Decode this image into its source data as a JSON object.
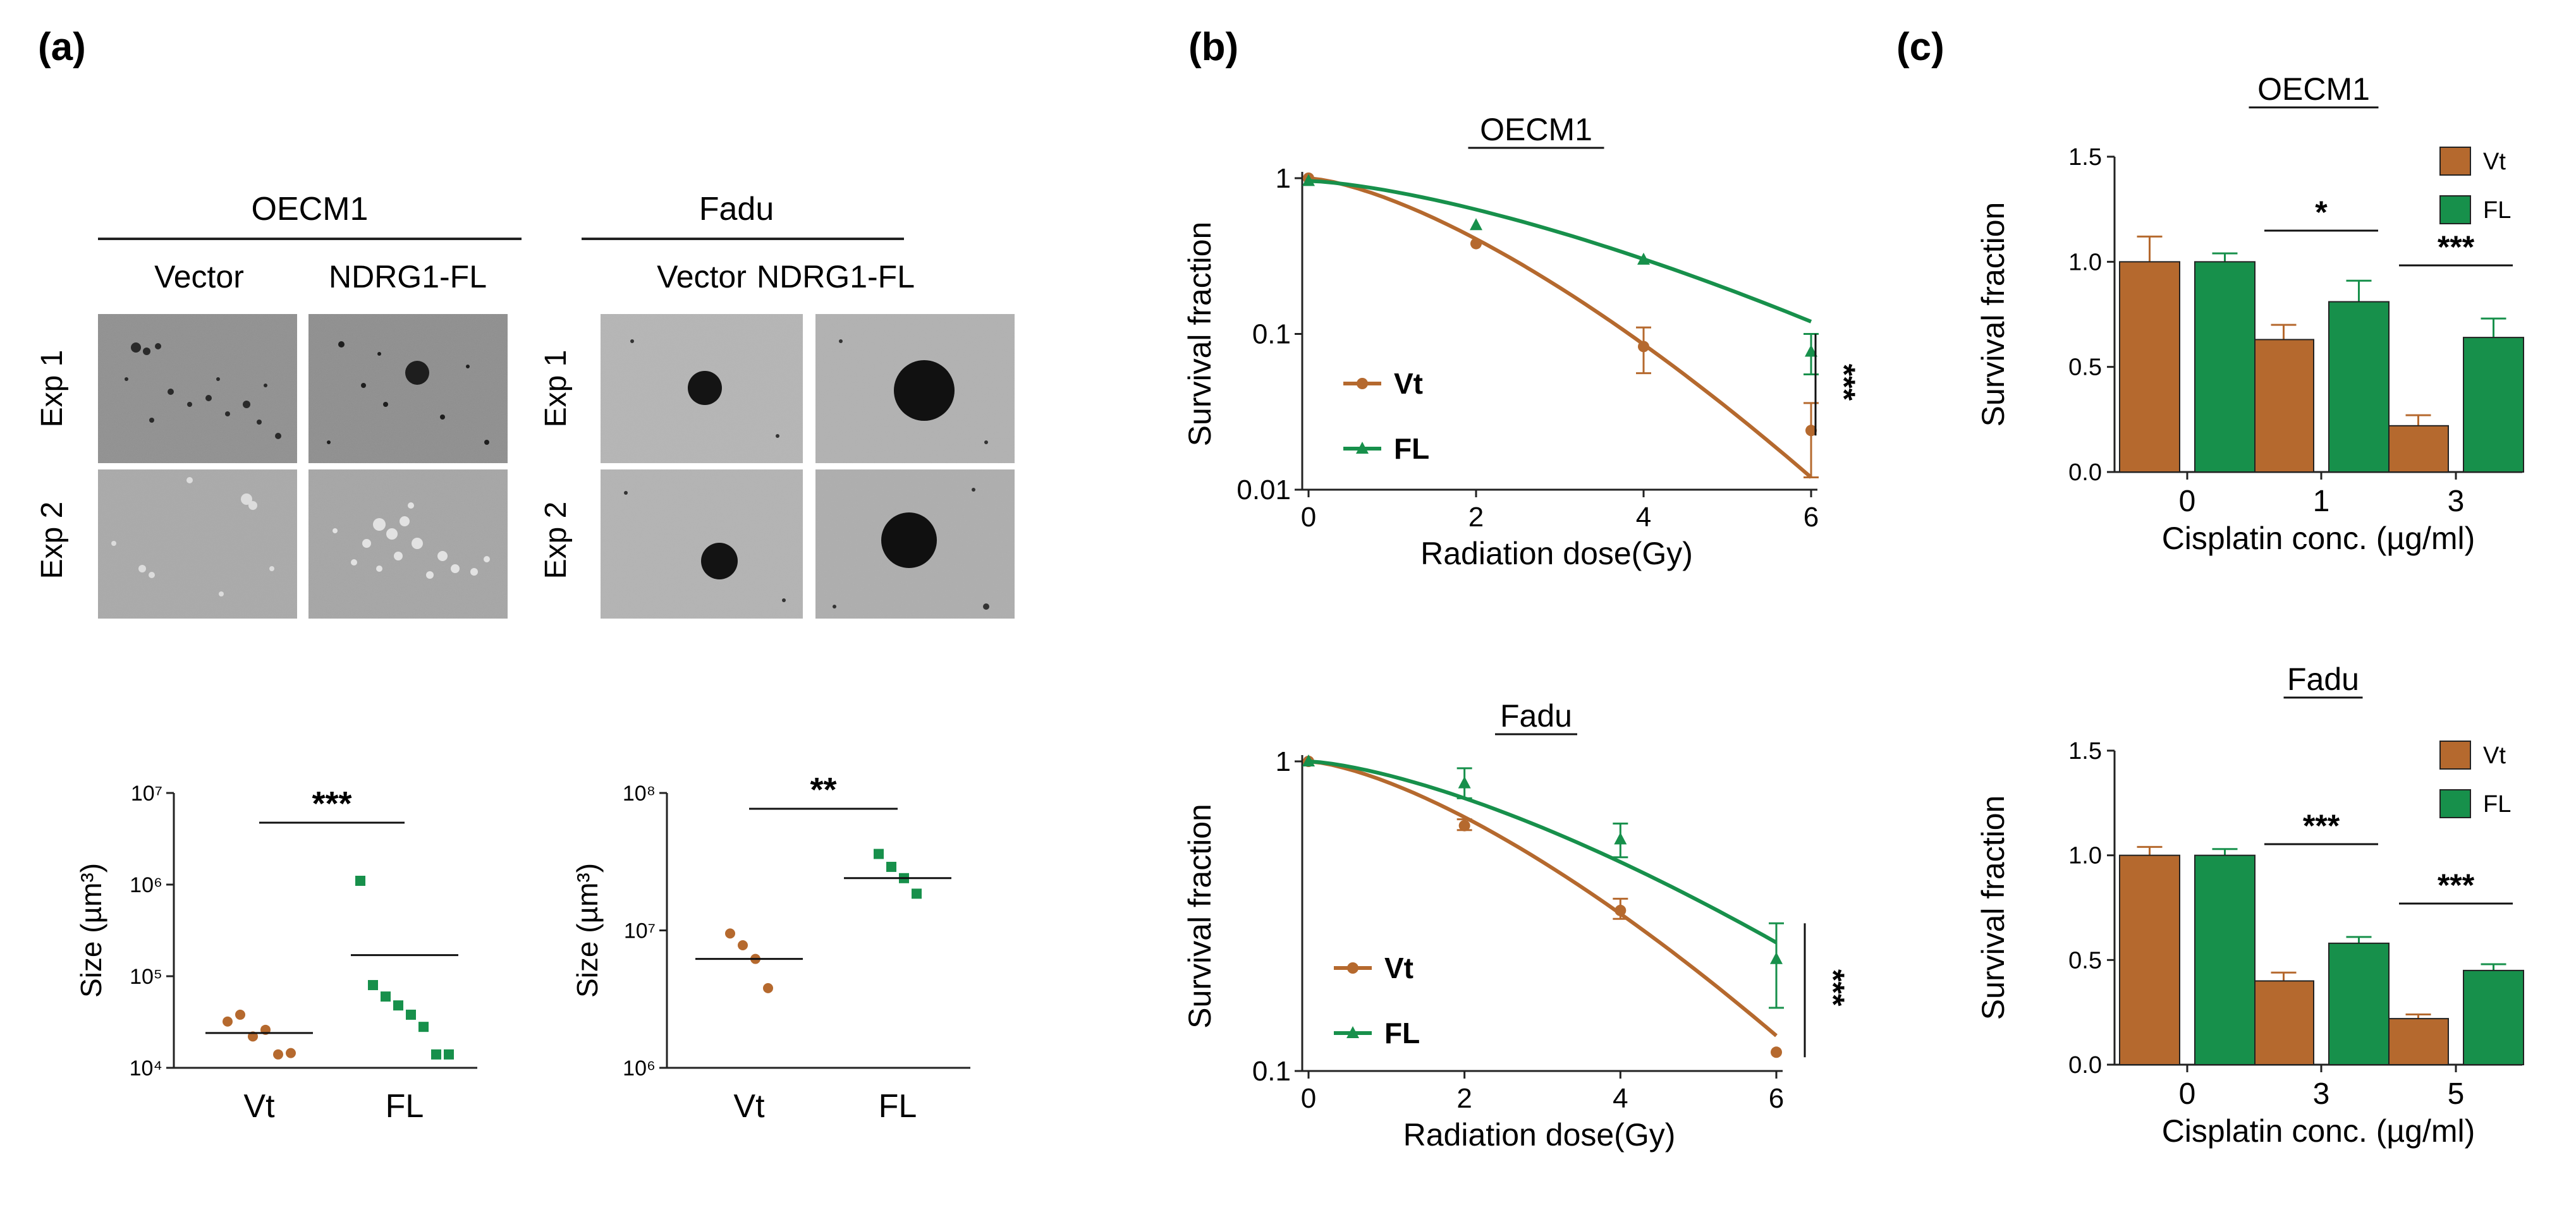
{
  "colors": {
    "vt": "#B5692E",
    "fl": "#17904B",
    "axis": "#222222",
    "ink": "#111111"
  },
  "panel_labels": {
    "a": "(a)",
    "b": "(b)",
    "c": "(c)"
  },
  "micrographs": {
    "groups": [
      {
        "title": "OECM1",
        "columns": [
          "Vector",
          "NDRG1-FL"
        ]
      },
      {
        "title": "Fadu",
        "columns": [
          "Vector",
          "NDRG1-FL"
        ]
      }
    ],
    "rows": [
      "Exp 1",
      "Exp 2"
    ]
  },
  "chart_data": [
    {
      "id": "a-oecm1-size",
      "type": "scatter",
      "title": "",
      "xlabel": "",
      "ylabel": "Size (µm³)",
      "yscale": "log",
      "ylim": [
        10000,
        10000000
      ],
      "yticks": [
        "10⁴",
        "10⁵",
        "10⁶",
        "10⁷"
      ],
      "categories": [
        "Vt",
        "FL"
      ],
      "series": [
        {
          "name": "Vt",
          "values": [
            32000,
            38000,
            22000,
            26000,
            14000,
            14500
          ],
          "mean": 24000
        },
        {
          "name": "FL",
          "values": [
            1100000,
            80000,
            60000,
            48000,
            38000,
            28000,
            14000,
            14000
          ],
          "mean": 170000
        }
      ],
      "annotations": [
        {
          "text": "***",
          "between": [
            "Vt",
            "FL"
          ]
        }
      ]
    },
    {
      "id": "a-fadu-size",
      "type": "scatter",
      "title": "",
      "xlabel": "",
      "ylabel": "Size (µm³)",
      "yscale": "log",
      "ylim": [
        1000000,
        100000000
      ],
      "yticks": [
        "10⁶",
        "10⁷",
        "10⁸"
      ],
      "categories": [
        "Vt",
        "FL"
      ],
      "series": [
        {
          "name": "Vt",
          "values": [
            9500000,
            7800000,
            6200000,
            3800000
          ],
          "mean": 6200000
        },
        {
          "name": "FL",
          "values": [
            36000000,
            29000000,
            24000000,
            18500000
          ],
          "mean": 24000000
        }
      ],
      "annotations": [
        {
          "text": "**",
          "between": [
            "Vt",
            "FL"
          ]
        }
      ]
    },
    {
      "id": "b-oecm1",
      "type": "line",
      "title": "OECM1",
      "xlabel": "Radiation dose(Gy)",
      "ylabel": "Survival fraction",
      "yscale": "log",
      "ylim": [
        0.01,
        1
      ],
      "xlim": [
        0,
        6
      ],
      "xticks": [
        "0",
        "2",
        "4",
        "6"
      ],
      "yticks": [
        "0.01",
        "0.1",
        "1"
      ],
      "series": [
        {
          "name": "Vt",
          "x": [
            0,
            2,
            4,
            6
          ],
          "y": [
            1.0,
            0.38,
            0.083,
            0.024
          ],
          "err_low": [
            0,
            0,
            0.056,
            0.012
          ],
          "err_high": [
            0,
            0,
            0.11,
            0.036
          ],
          "fit_end": 0.012
        },
        {
          "name": "FL",
          "x": [
            0,
            2,
            4,
            6
          ],
          "y": [
            0.96,
            0.5,
            0.3,
            0.077
          ],
          "err_low": [
            0,
            0,
            0,
            0.055
          ],
          "err_high": [
            0,
            0,
            0,
            0.1
          ],
          "fit_end": 0.12
        }
      ],
      "annotations": [
        {
          "text": "***",
          "at_x": 6
        }
      ]
    },
    {
      "id": "b-fadu",
      "type": "line",
      "title": "Fadu",
      "xlabel": "Radiation dose(Gy)",
      "ylabel": "Survival fraction",
      "yscale": "log",
      "ylim": [
        0.1,
        1
      ],
      "xlim": [
        0,
        6
      ],
      "xticks": [
        "0",
        "2",
        "4",
        "6"
      ],
      "yticks": [
        "0.1",
        "1"
      ],
      "series": [
        {
          "name": "Vt",
          "x": [
            0,
            2,
            4,
            6
          ],
          "y": [
            1.0,
            0.62,
            0.33,
            0.115
          ],
          "err_low": [
            0,
            0.6,
            0.31,
            0
          ],
          "err_high": [
            0,
            0.65,
            0.36,
            0
          ],
          "fit_end": 0.13
        },
        {
          "name": "FL",
          "x": [
            0,
            2,
            4,
            6
          ],
          "y": [
            1.0,
            0.85,
            0.56,
            0.23
          ],
          "err_low": [
            0,
            0.76,
            0.49,
            0.16
          ],
          "err_high": [
            0,
            0.95,
            0.63,
            0.3
          ],
          "fit_end": 0.26
        }
      ],
      "annotations": [
        {
          "text": "***",
          "at_x": 6
        }
      ]
    },
    {
      "id": "c-oecm1",
      "type": "bar",
      "title": "OECM1",
      "xlabel": "Cisplatin conc. (µg/ml)",
      "ylabel": "Survival fraction",
      "ylim": [
        0,
        1.5
      ],
      "yticks": [
        "0.0",
        "0.5",
        "1.0",
        "1.5"
      ],
      "categories": [
        "0",
        "1",
        "3"
      ],
      "series": [
        {
          "name": "Vt",
          "values": [
            1.0,
            0.63,
            0.22
          ],
          "errors": [
            0.12,
            0.07,
            0.05
          ]
        },
        {
          "name": "FL",
          "values": [
            1.0,
            0.81,
            0.64
          ],
          "errors": [
            0.04,
            0.1,
            0.09
          ]
        }
      ],
      "annotations": [
        {
          "text": "*",
          "category": "1"
        },
        {
          "text": "***",
          "category": "3"
        }
      ]
    },
    {
      "id": "c-fadu",
      "type": "bar",
      "title": "Fadu",
      "xlabel": "Cisplatin conc. (µg/ml)",
      "ylabel": "Survival fraction",
      "ylim": [
        0,
        1.5
      ],
      "yticks": [
        "0.0",
        "0.5",
        "1.0",
        "1.5"
      ],
      "categories": [
        "0",
        "3",
        "5"
      ],
      "series": [
        {
          "name": "Vt",
          "values": [
            1.0,
            0.4,
            0.22
          ],
          "errors": [
            0.04,
            0.04,
            0.02
          ]
        },
        {
          "name": "FL",
          "values": [
            1.0,
            0.58,
            0.45
          ],
          "errors": [
            0.03,
            0.03,
            0.03
          ]
        }
      ],
      "annotations": [
        {
          "text": "***",
          "category": "3"
        },
        {
          "text": "***",
          "category": "5"
        }
      ]
    }
  ]
}
